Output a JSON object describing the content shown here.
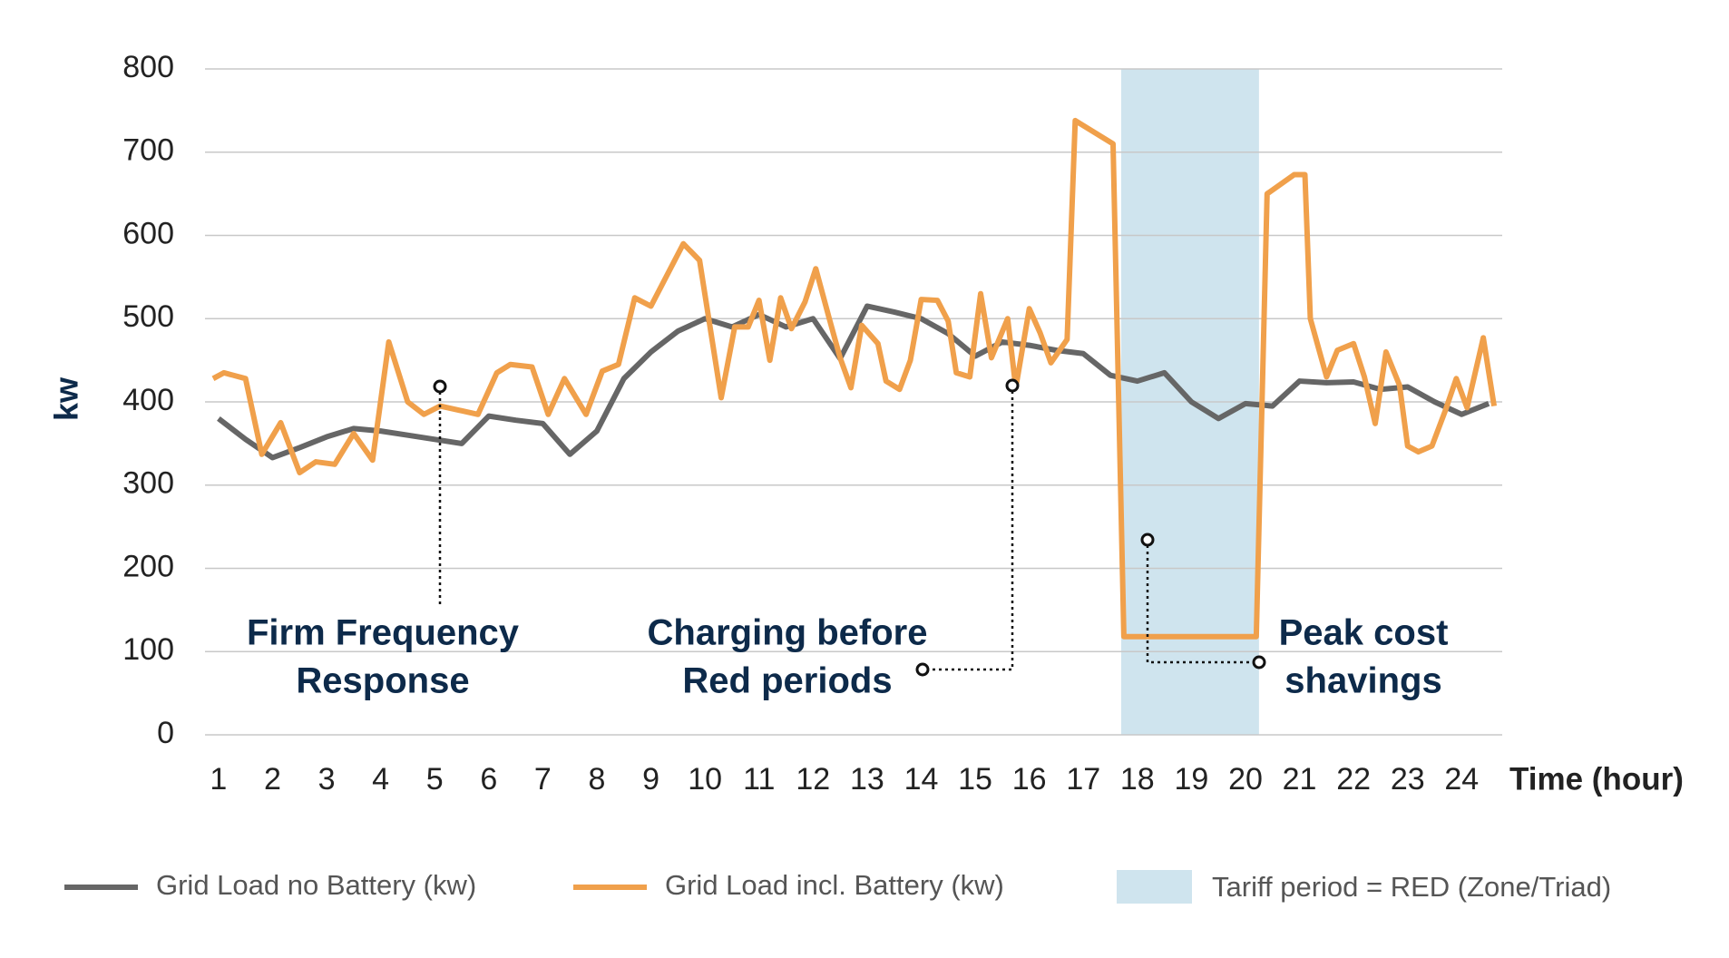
{
  "chart_data": {
    "type": "line",
    "y_label": "kw",
    "x_label": "Time (hour)",
    "xlim": [
      0.75,
      24.75
    ],
    "xticks": [
      1,
      2,
      3,
      4,
      5,
      6,
      7,
      8,
      9,
      10,
      11,
      12,
      13,
      14,
      15,
      16,
      17,
      18,
      19,
      20,
      21,
      22,
      23,
      24
    ],
    "ylim": [
      0,
      800
    ],
    "yticks": [
      0,
      100,
      200,
      300,
      400,
      500,
      600,
      700,
      800
    ],
    "grid": true,
    "shade": {
      "name": "Tariff period = RED (Zone/Triad)",
      "color": "#cfe4ee",
      "x": [
        17.7,
        20.25
      ]
    },
    "series": [
      {
        "name": "Grid Load no Battery (kw)",
        "color": "#666666",
        "x": [
          1,
          1.5,
          2,
          2.5,
          3,
          3.5,
          4,
          4.5,
          5,
          5.5,
          6,
          6.5,
          7,
          7.5,
          8,
          8.5,
          9,
          9.5,
          10,
          10.5,
          11,
          11.5,
          12,
          12.5,
          13,
          13.5,
          14,
          14.5,
          15,
          15.5,
          16,
          16.5,
          17,
          17.5,
          18,
          18.5,
          19,
          19.5,
          20,
          20.5,
          21,
          21.5,
          22,
          22.5,
          23,
          23.5,
          24,
          24.5
        ],
        "values": [
          380,
          355,
          333,
          345,
          358,
          368,
          365,
          360,
          355,
          350,
          383,
          378,
          374,
          337,
          365,
          428,
          460,
          485,
          500,
          490,
          505,
          490,
          500,
          452,
          515,
          508,
          500,
          482,
          455,
          472,
          468,
          462,
          458,
          432,
          425,
          435,
          400,
          380,
          398,
          395,
          425,
          423,
          424,
          415,
          418,
          400,
          385,
          398
        ]
      },
      {
        "name": "Grid Load incl. Battery (kw)",
        "color": "#f0a04b",
        "x": [
          0.9,
          1.1,
          1.5,
          1.8,
          2.15,
          2.5,
          2.8,
          3.15,
          3.5,
          3.85,
          4.15,
          4.5,
          4.8,
          5.1,
          5.45,
          5.8,
          6.15,
          6.4,
          6.8,
          7.1,
          7.4,
          7.8,
          8.1,
          8.4,
          8.7,
          9,
          9.6,
          9.9,
          10.3,
          10.55,
          10.8,
          11,
          11.2,
          11.4,
          11.6,
          11.85,
          12.05,
          12.3,
          12.5,
          12.7,
          12.9,
          13.2,
          13.35,
          13.6,
          13.8,
          14,
          14.3,
          14.5,
          14.65,
          14.9,
          15.1,
          15.3,
          15.6,
          15.75,
          16,
          16.2,
          16.4,
          16.7,
          16.85,
          17.55,
          17.75,
          20.2,
          20.4,
          20.9,
          21.1,
          21.2,
          21.5,
          21.7,
          22,
          22.2,
          22.4,
          22.6,
          22.85,
          23,
          23.2,
          23.45,
          23.7,
          23.9,
          24.1,
          24.4,
          24.6
        ],
        "values": [
          428,
          435,
          428,
          337,
          375,
          315,
          328,
          325,
          362,
          330,
          472,
          400,
          385,
          395,
          390,
          385,
          435,
          445,
          442,
          385,
          428,
          385,
          437,
          445,
          525,
          515,
          590,
          570,
          405,
          490,
          490,
          522,
          450,
          525,
          488,
          520,
          560,
          500,
          453,
          417,
          492,
          470,
          425,
          415,
          450,
          523,
          522,
          497,
          435,
          430,
          530,
          453,
          500,
          417,
          512,
          483,
          447,
          475,
          738,
          710,
          118,
          118,
          650,
          673,
          673,
          500,
          430,
          462,
          470,
          430,
          374,
          460,
          420,
          347,
          340,
          347,
          390,
          428,
          393,
          477,
          395
        ]
      }
    ],
    "annotations": [
      {
        "text": [
          "Firm Frequency",
          "Response"
        ]
      },
      {
        "text": [
          "Charging before",
          "Red periods"
        ]
      },
      {
        "text": [
          "Peak cost",
          "shavings"
        ]
      }
    ]
  }
}
